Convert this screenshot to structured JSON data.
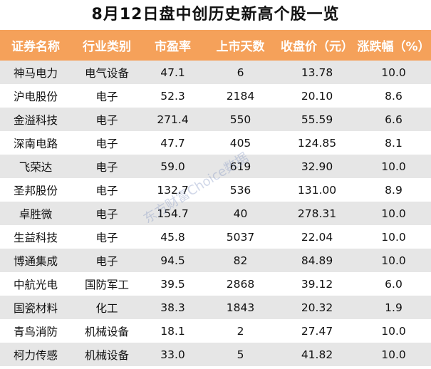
{
  "title": "8月12日盘中创历史新高个股一览",
  "headers": [
    "证券名称",
    "行业类别",
    "市盈率",
    "上市天数",
    "收盘价（元）",
    "涨跌幅（%）"
  ],
  "rows": [
    [
      "神马电力",
      "电气设备",
      "47.1",
      "6",
      "13.78",
      "10.0"
    ],
    [
      "沪电股份",
      "电子",
      "52.3",
      "2184",
      "20.10",
      "8.6"
    ],
    [
      "金溢科技",
      "电子",
      "271.4",
      "550",
      "55.59",
      "6.6"
    ],
    [
      "深南电路",
      "电子",
      "47.7",
      "405",
      "124.85",
      "8.1"
    ],
    [
      "飞荣达",
      "电子",
      "59.0",
      "619",
      "32.90",
      "10.0"
    ],
    [
      "圣邦股份",
      "电子",
      "132.7",
      "536",
      "131.00",
      "8.9"
    ],
    [
      "卓胜微",
      "电子",
      "154.7",
      "40",
      "278.31",
      "10.0"
    ],
    [
      "生益科技",
      "电子",
      "45.8",
      "5037",
      "22.04",
      "10.0"
    ],
    [
      "博通集成",
      "电子",
      "94.5",
      "82",
      "84.89",
      "10.0"
    ],
    [
      "中航光电",
      "国防军工",
      "39.5",
      "2868",
      "39.12",
      "6.0"
    ],
    [
      "国瓷材料",
      "化工",
      "38.3",
      "1843",
      "20.32",
      "1.9"
    ],
    [
      "青鸟消防",
      "机械设备",
      "18.1",
      "2",
      "27.47",
      "10.0"
    ],
    [
      "柯力传感",
      "机械设备",
      "33.0",
      "5",
      "41.82",
      "10.0"
    ]
  ],
  "watermark": "东方财富Choice数据",
  "colors": {
    "header_bg": "#f5a15a",
    "stripe": "#e6e6e6"
  }
}
